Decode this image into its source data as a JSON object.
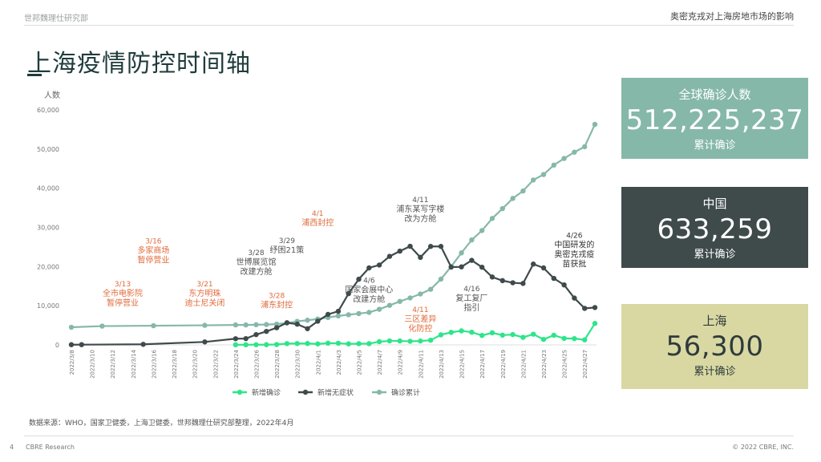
{
  "header": {
    "left": "世邦魏理仕研究部",
    "right": "奥密克戎对上海房地市场的影响"
  },
  "title": "上海疫情防控时间轴",
  "panels": [
    {
      "label": "全球确诊人数",
      "value": "512,225,237",
      "sub": "累计确诊",
      "bg": "#86b8aa",
      "fg": "#ffffff"
    },
    {
      "label": "中国",
      "value": "633,259",
      "sub": "累计确诊",
      "bg": "#3f4a4b",
      "fg": "#ffffff"
    },
    {
      "label": "上海",
      "value": "56,300",
      "sub": "累计确诊",
      "bg": "#d9d8a3",
      "fg": "#2f3b3b"
    }
  ],
  "source": "数据来源：WHO，国家卫健委，上海卫健委，世邦魏理仕研究部整理，2022年4月",
  "footer": {
    "page": "4",
    "brand": "CBRE Research",
    "copyright": "© 2022 CBRE, INC."
  },
  "chart_data": {
    "type": "line",
    "ylabel": "人数",
    "ylim": [
      0,
      60000
    ],
    "yticks": [
      "0",
      "10,000",
      "20,000",
      "30,000",
      "40,000",
      "50,000",
      "60,000"
    ],
    "grid": false,
    "legend_position": "bottom",
    "x_dates": [
      "2022/3/8",
      "2022/3/9",
      "2022/3/10",
      "2022/3/11",
      "2022/3/12",
      "2022/3/13",
      "2022/3/14",
      "2022/3/15",
      "2022/3/16",
      "2022/3/17",
      "2022/3/18",
      "2022/3/19",
      "2022/3/20",
      "2022/3/21",
      "2022/3/22",
      "2022/3/23",
      "2022/3/24",
      "2022/3/25",
      "2022/3/26",
      "2022/3/27",
      "2022/3/28",
      "2022/3/29",
      "2022/3/30",
      "2022/3/31",
      "2022/4/1",
      "2022/4/2",
      "2022/4/3",
      "2022/4/4",
      "2022/4/5",
      "2022/4/6",
      "2022/4/7",
      "2022/4/8",
      "2022/4/9",
      "2022/4/10",
      "2022/4/11",
      "2022/4/12",
      "2022/4/13",
      "2022/4/14",
      "2022/4/15",
      "2022/4/16",
      "2022/4/17",
      "2022/4/18",
      "2022/4/19",
      "2022/4/20",
      "2022/4/21",
      "2022/4/22",
      "2022/4/23",
      "2022/4/24",
      "2022/4/25",
      "2022/4/26",
      "2022/4/27",
      "2022/4/28"
    ],
    "xtick_labels": [
      "2022/3/8",
      "2022/3/10",
      "2022/3/12",
      "2022/3/14",
      "2022/3/16",
      "2022/3/18",
      "2022/3/20",
      "2022/3/22",
      "2022/3/24",
      "2022/3/26",
      "2022/3/28",
      "2022/3/30",
      "2022/4/1",
      "2022/4/3",
      "2022/4/5",
      "2022/4/7",
      "2022/4/9",
      "2022/4/11",
      "2022/4/13",
      "2022/4/15",
      "2022/4/17",
      "2022/4/19",
      "2022/4/21",
      "2022/4/23",
      "2022/4/25",
      "2022/4/27"
    ],
    "series": [
      {
        "name": "新增确诊",
        "color": "#2ee58a",
        "points": [
          [
            "2022/3/24",
            29
          ],
          [
            "2022/3/25",
            38
          ],
          [
            "2022/3/26",
            45
          ],
          [
            "2022/3/27",
            50
          ],
          [
            "2022/3/28",
            96
          ],
          [
            "2022/3/29",
            326
          ],
          [
            "2022/3/30",
            355
          ],
          [
            "2022/3/31",
            358
          ],
          [
            "2022/4/1",
            260
          ],
          [
            "2022/4/2",
            438
          ],
          [
            "2022/4/3",
            425
          ],
          [
            "2022/4/4",
            268
          ],
          [
            "2022/4/5",
            311
          ],
          [
            "2022/4/6",
            322
          ],
          [
            "2022/4/7",
            824
          ],
          [
            "2022/4/8",
            1015
          ],
          [
            "2022/4/9",
            1006
          ],
          [
            "2022/4/10",
            914
          ],
          [
            "2022/4/11",
            994
          ],
          [
            "2022/4/12",
            1189
          ],
          [
            "2022/4/13",
            2573
          ],
          [
            "2022/4/14",
            3200
          ],
          [
            "2022/4/15",
            3590
          ],
          [
            "2022/4/16",
            3238
          ],
          [
            "2022/4/17",
            2417
          ],
          [
            "2022/4/18",
            3084
          ],
          [
            "2022/4/19",
            2494
          ],
          [
            "2022/4/20",
            2634
          ],
          [
            "2022/4/21",
            1931
          ],
          [
            "2022/4/22",
            2736
          ],
          [
            "2022/4/23",
            1401
          ],
          [
            "2022/4/24",
            2472
          ],
          [
            "2022/4/25",
            1661
          ],
          [
            "2022/4/26",
            1606
          ],
          [
            "2022/4/27",
            1292
          ],
          [
            "2022/4/28",
            5487
          ]
        ]
      },
      {
        "name": "新增无症状",
        "color": "#3f4a4b",
        "points": [
          [
            "2022/3/8",
            50
          ],
          [
            "2022/3/9",
            62
          ],
          [
            "2022/3/15",
            150
          ],
          [
            "2022/3/21",
            758
          ],
          [
            "2022/3/24",
            1580
          ],
          [
            "2022/3/25",
            1609
          ],
          [
            "2022/3/26",
            2631
          ],
          [
            "2022/3/27",
            3450
          ],
          [
            "2022/3/28",
            4381
          ],
          [
            "2022/3/29",
            5656
          ],
          [
            "2022/3/30",
            5298
          ],
          [
            "2022/3/31",
            4144
          ],
          [
            "2022/4/1",
            6051
          ],
          [
            "2022/4/2",
            7788
          ],
          [
            "2022/4/3",
            8581
          ],
          [
            "2022/4/4",
            13086
          ],
          [
            "2022/4/5",
            16766
          ],
          [
            "2022/4/6",
            19660
          ],
          [
            "2022/4/7",
            20398
          ],
          [
            "2022/4/8",
            22609
          ],
          [
            "2022/4/9",
            23937
          ],
          [
            "2022/4/10",
            25173
          ],
          [
            "2022/4/11",
            22348
          ],
          [
            "2022/4/12",
            25141
          ],
          [
            "2022/4/13",
            25146
          ],
          [
            "2022/4/14",
            19872
          ],
          [
            "2022/4/15",
            19923
          ],
          [
            "2022/4/16",
            21582
          ],
          [
            "2022/4/17",
            19831
          ],
          [
            "2022/4/18",
            17332
          ],
          [
            "2022/4/19",
            16407
          ],
          [
            "2022/4/20",
            15861
          ],
          [
            "2022/4/21",
            15698
          ],
          [
            "2022/4/22",
            20634
          ],
          [
            "2022/4/23",
            19657
          ],
          [
            "2022/4/24",
            16983
          ],
          [
            "2022/4/25",
            15319
          ],
          [
            "2022/4/26",
            11956
          ],
          [
            "2022/4/27",
            9330
          ],
          [
            "2022/4/28",
            9545
          ]
        ]
      },
      {
        "name": "确诊累计",
        "color": "#86b8aa",
        "points": [
          [
            "2022/3/8",
            4500
          ],
          [
            "2022/3/11",
            4800
          ],
          [
            "2022/3/16",
            4900
          ],
          [
            "2022/3/21",
            5000
          ],
          [
            "2022/3/24",
            5100
          ],
          [
            "2022/3/25",
            5100
          ],
          [
            "2022/3/26",
            5150
          ],
          [
            "2022/3/27",
            5200
          ],
          [
            "2022/3/28",
            5300
          ],
          [
            "2022/3/29",
            5600
          ],
          [
            "2022/3/30",
            6000
          ],
          [
            "2022/3/31",
            6300
          ],
          [
            "2022/4/1",
            6600
          ],
          [
            "2022/4/2",
            7000
          ],
          [
            "2022/4/3",
            7400
          ],
          [
            "2022/4/4",
            7700
          ],
          [
            "2022/4/5",
            8000
          ],
          [
            "2022/4/6",
            8300
          ],
          [
            "2022/4/7",
            9100
          ],
          [
            "2022/4/8",
            10100
          ],
          [
            "2022/4/9",
            11100
          ],
          [
            "2022/4/10",
            12000
          ],
          [
            "2022/4/11",
            13000
          ],
          [
            "2022/4/12",
            14200
          ],
          [
            "2022/4/13",
            16800
          ],
          [
            "2022/4/14",
            20000
          ],
          [
            "2022/4/15",
            23500
          ],
          [
            "2022/4/16",
            26800
          ],
          [
            "2022/4/17",
            29200
          ],
          [
            "2022/4/18",
            32300
          ],
          [
            "2022/4/19",
            34800
          ],
          [
            "2022/4/20",
            37400
          ],
          [
            "2022/4/21",
            39300
          ],
          [
            "2022/4/22",
            42100
          ],
          [
            "2022/4/23",
            43500
          ],
          [
            "2022/4/24",
            45900
          ],
          [
            "2022/4/25",
            47600
          ],
          [
            "2022/4/26",
            49200
          ],
          [
            "2022/4/27",
            50600
          ],
          [
            "2022/4/28",
            56300
          ]
        ]
      }
    ],
    "annotations": [
      {
        "date": "2022/3/13",
        "y": 10000,
        "lines": [
          "3/13",
          "全市电影院",
          "暂停营业"
        ],
        "color": "#e06a3a"
      },
      {
        "date": "2022/3/16",
        "y": 21000,
        "lines": [
          "3/16",
          "多家商场",
          "暂停营业"
        ],
        "color": "#e06a3a"
      },
      {
        "date": "2022/3/21",
        "y": 10000,
        "lines": [
          "3/21",
          "东方明珠",
          "迪士尼关闭"
        ],
        "color": "#e06a3a"
      },
      {
        "date": "2022/3/26",
        "y": 18000,
        "lines": [
          "3/28",
          "世博展览馆",
          "改建方舱"
        ],
        "color": "#555555"
      },
      {
        "date": "2022/3/28",
        "y": 9500,
        "lines": [
          "3/28",
          "浦东封控"
        ],
        "color": "#e06a3a"
      },
      {
        "date": "2022/3/29",
        "y": 23500,
        "lines": [
          "3/29",
          "纾困21策"
        ],
        "color": "#555555"
      },
      {
        "date": "2022/4/1",
        "y": 30500,
        "lines": [
          "4/1",
          "浦西封控"
        ],
        "color": "#e06a3a"
      },
      {
        "date": "2022/4/6",
        "y": 11000,
        "lines": [
          "4/6",
          "国家会展中心",
          "改建方舱"
        ],
        "color": "#555555"
      },
      {
        "date": "2022/4/11",
        "y": 31500,
        "lines": [
          "4/11",
          "浦东某写字楼",
          "改为方舱"
        ],
        "color": "#555555"
      },
      {
        "date": "2022/4/11",
        "y": 3500,
        "lines": [
          "4/11",
          "三区差异",
          "化防控"
        ],
        "color": "#e06a3a"
      },
      {
        "date": "2022/4/16",
        "y": 8800,
        "lines": [
          "4/16",
          "复工复厂",
          "指引"
        ],
        "color": "#555555"
      },
      {
        "date": "2022/4/26",
        "y": 20000,
        "lines": [
          "4/26",
          "中国研发的",
          "奥密克戎疫",
          "苗获批"
        ],
        "color": "#333333"
      }
    ]
  }
}
